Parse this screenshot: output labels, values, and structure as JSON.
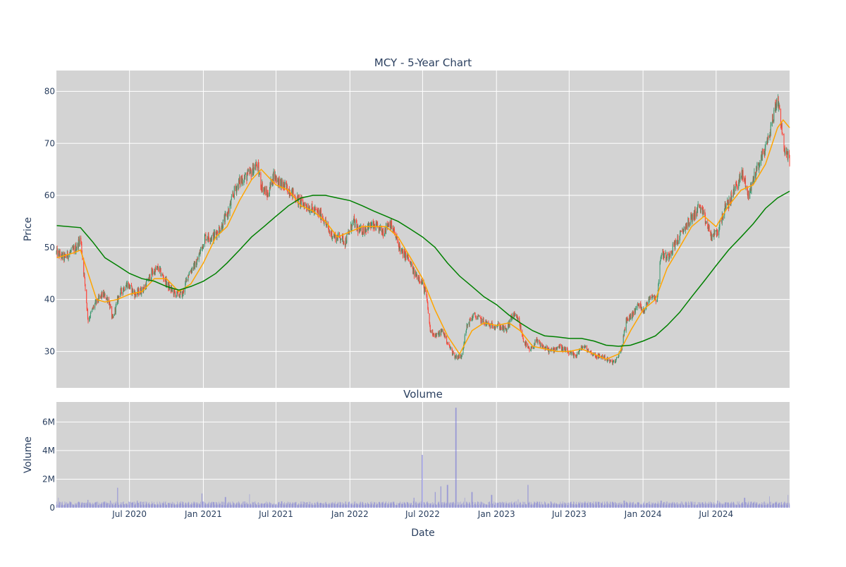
{
  "chart_data": [
    {
      "type": "candlestick",
      "title": "MCY - 5-Year Chart",
      "xlabel": "",
      "ylabel": "Price",
      "ylim": [
        23,
        84
      ],
      "xlim": [
        "2020-01-01",
        "2024-12-31"
      ],
      "yticks": [
        30,
        40,
        50,
        60,
        70,
        80
      ],
      "grid": true,
      "colors": {
        "background": "#d3d3d3",
        "grid": "#ffffff",
        "up": "#3d9970",
        "down": "#ff4136",
        "ma_short": "#ffa500",
        "ma_long": "#008000"
      },
      "price_anchors": [
        [
          "2020-01-02",
          49
        ],
        [
          "2020-01-20",
          48
        ],
        [
          "2020-02-20",
          50
        ],
        [
          "2020-03-01",
          52
        ],
        [
          "2020-03-12",
          43
        ],
        [
          "2020-03-20",
          36
        ],
        [
          "2020-04-05",
          39
        ],
        [
          "2020-04-25",
          41
        ],
        [
          "2020-05-10",
          40
        ],
        [
          "2020-05-20",
          36
        ],
        [
          "2020-06-05",
          41
        ],
        [
          "2020-06-25",
          43
        ],
        [
          "2020-07-15",
          41
        ],
        [
          "2020-08-05",
          42
        ],
        [
          "2020-08-25",
          45
        ],
        [
          "2020-09-10",
          46
        ],
        [
          "2020-09-25",
          44
        ],
        [
          "2020-10-10",
          42
        ],
        [
          "2020-10-25",
          41
        ],
        [
          "2020-11-10",
          41
        ],
        [
          "2020-11-25",
          45
        ],
        [
          "2020-12-15",
          47
        ],
        [
          "2021-01-05",
          52
        ],
        [
          "2021-01-25",
          52
        ],
        [
          "2021-02-15",
          54
        ],
        [
          "2021-03-05",
          57
        ],
        [
          "2021-03-20",
          61
        ],
        [
          "2021-04-05",
          63
        ],
        [
          "2021-04-25",
          64
        ],
        [
          "2021-05-15",
          66
        ],
        [
          "2021-05-25",
          62
        ],
        [
          "2021-06-10",
          60
        ],
        [
          "2021-06-25",
          64
        ],
        [
          "2021-07-15",
          62
        ],
        [
          "2021-08-05",
          61
        ],
        [
          "2021-08-25",
          59
        ],
        [
          "2021-09-15",
          58
        ],
        [
          "2021-10-05",
          57
        ],
        [
          "2021-10-25",
          56
        ],
        [
          "2021-11-10",
          53
        ],
        [
          "2021-11-25",
          52
        ],
        [
          "2021-12-10",
          52
        ],
        [
          "2021-12-20",
          51
        ],
        [
          "2022-01-10",
          55
        ],
        [
          "2022-01-25",
          53
        ],
        [
          "2022-02-15",
          54
        ],
        [
          "2022-03-05",
          54
        ],
        [
          "2022-03-25",
          53
        ],
        [
          "2022-04-10",
          55
        ],
        [
          "2022-04-25",
          52
        ],
        [
          "2022-05-10",
          49
        ],
        [
          "2022-05-25",
          48
        ],
        [
          "2022-06-10",
          45
        ],
        [
          "2022-06-25",
          44
        ],
        [
          "2022-07-10",
          41
        ],
        [
          "2022-07-20",
          34
        ],
        [
          "2022-08-05",
          33
        ],
        [
          "2022-08-20",
          34
        ],
        [
          "2022-09-05",
          31
        ],
        [
          "2022-09-20",
          29
        ],
        [
          "2022-10-05",
          29
        ],
        [
          "2022-10-20",
          35
        ],
        [
          "2022-11-05",
          37
        ],
        [
          "2022-11-25",
          36
        ],
        [
          "2022-12-15",
          35
        ],
        [
          "2023-01-05",
          35
        ],
        [
          "2023-01-25",
          34
        ],
        [
          "2023-02-10",
          37
        ],
        [
          "2023-02-25",
          36
        ],
        [
          "2023-03-10",
          32
        ],
        [
          "2023-03-25",
          30
        ],
        [
          "2023-04-10",
          32
        ],
        [
          "2023-04-25",
          31
        ],
        [
          "2023-05-15",
          30
        ],
        [
          "2023-06-05",
          31
        ],
        [
          "2023-06-25",
          30
        ],
        [
          "2023-07-15",
          29
        ],
        [
          "2023-08-05",
          31
        ],
        [
          "2023-08-20",
          30
        ],
        [
          "2023-09-10",
          29
        ],
        [
          "2023-09-25",
          29
        ],
        [
          "2023-10-10",
          28
        ],
        [
          "2023-10-25",
          28
        ],
        [
          "2023-11-10",
          31
        ],
        [
          "2023-11-20",
          36
        ],
        [
          "2023-12-05",
          37
        ],
        [
          "2023-12-20",
          39
        ],
        [
          "2024-01-05",
          38
        ],
        [
          "2024-01-20",
          41
        ],
        [
          "2024-02-05",
          40
        ],
        [
          "2024-02-15",
          49
        ],
        [
          "2024-03-01",
          48
        ],
        [
          "2024-03-15",
          50
        ],
        [
          "2024-04-01",
          52
        ],
        [
          "2024-04-15",
          54
        ],
        [
          "2024-05-05",
          56
        ],
        [
          "2024-05-20",
          58
        ],
        [
          "2024-06-05",
          55
        ],
        [
          "2024-06-20",
          52
        ],
        [
          "2024-07-05",
          53
        ],
        [
          "2024-07-20",
          57
        ],
        [
          "2024-08-05",
          59
        ],
        [
          "2024-08-20",
          62
        ],
        [
          "2024-09-05",
          64
        ],
        [
          "2024-09-20",
          60
        ],
        [
          "2024-10-05",
          64
        ],
        [
          "2024-10-20",
          67
        ],
        [
          "2024-11-05",
          70
        ],
        [
          "2024-11-20",
          75
        ],
        [
          "2024-12-01",
          79
        ],
        [
          "2024-12-10",
          74
        ],
        [
          "2024-12-20",
          68
        ],
        [
          "2024-12-31",
          67
        ]
      ],
      "series": [
        {
          "type": "line",
          "color": "#ffa500",
          "points": [
            [
              "2020-01-02",
              48
            ],
            [
              "2020-02-15",
              49
            ],
            [
              "2020-03-01",
              49.5
            ],
            [
              "2020-03-20",
              45
            ],
            [
              "2020-04-10",
              40
            ],
            [
              "2020-05-01",
              39.5
            ],
            [
              "2020-06-01",
              40
            ],
            [
              "2020-07-01",
              41
            ],
            [
              "2020-08-01",
              41.5
            ],
            [
              "2020-09-01",
              44
            ],
            [
              "2020-10-01",
              44
            ],
            [
              "2020-11-01",
              41.5
            ],
            [
              "2020-12-01",
              43
            ],
            [
              "2021-01-01",
              47
            ],
            [
              "2021-02-01",
              52
            ],
            [
              "2021-03-01",
              54
            ],
            [
              "2021-04-01",
              59
            ],
            [
              "2021-05-01",
              63
            ],
            [
              "2021-05-25",
              65
            ],
            [
              "2021-07-01",
              62
            ],
            [
              "2021-08-01",
              61
            ],
            [
              "2021-09-01",
              58
            ],
            [
              "2021-10-01",
              57
            ],
            [
              "2021-11-01",
              55
            ],
            [
              "2021-12-01",
              52
            ],
            [
              "2022-01-01",
              53
            ],
            [
              "2022-02-01",
              54
            ],
            [
              "2022-03-01",
              54
            ],
            [
              "2022-04-01",
              54
            ],
            [
              "2022-05-01",
              52
            ],
            [
              "2022-06-01",
              48
            ],
            [
              "2022-07-01",
              44
            ],
            [
              "2022-08-01",
              38
            ],
            [
              "2022-09-01",
              33
            ],
            [
              "2022-10-01",
              29.5
            ],
            [
              "2022-11-01",
              34
            ],
            [
              "2022-12-01",
              35.5
            ],
            [
              "2023-01-01",
              35
            ],
            [
              "2023-02-01",
              35.5
            ],
            [
              "2023-03-01",
              34
            ],
            [
              "2023-04-01",
              31
            ],
            [
              "2023-05-01",
              30.5
            ],
            [
              "2023-06-01",
              30
            ],
            [
              "2023-07-01",
              30
            ],
            [
              "2023-08-01",
              30.5
            ],
            [
              "2023-09-01",
              29.5
            ],
            [
              "2023-10-01",
              28.5
            ],
            [
              "2023-11-01",
              29.5
            ],
            [
              "2023-12-01",
              34
            ],
            [
              "2024-01-01",
              38
            ],
            [
              "2024-02-01",
              40
            ],
            [
              "2024-03-01",
              46
            ],
            [
              "2024-04-01",
              50
            ],
            [
              "2024-05-01",
              54
            ],
            [
              "2024-06-01",
              56
            ],
            [
              "2024-07-01",
              54
            ],
            [
              "2024-08-01",
              58
            ],
            [
              "2024-09-01",
              61
            ],
            [
              "2024-10-01",
              62
            ],
            [
              "2024-11-01",
              66
            ],
            [
              "2024-12-01",
              73
            ],
            [
              "2024-12-15",
              74.5
            ],
            [
              "2024-12-31",
              73
            ]
          ]
        },
        {
          "type": "line",
          "color": "#008000",
          "points": [
            [
              "2020-01-02",
              54.2
            ],
            [
              "2020-03-01",
              53.8
            ],
            [
              "2020-04-01",
              51
            ],
            [
              "2020-05-01",
              48
            ],
            [
              "2020-06-01",
              46.5
            ],
            [
              "2020-07-01",
              45
            ],
            [
              "2020-08-01",
              44
            ],
            [
              "2020-09-01",
              43.5
            ],
            [
              "2020-10-01",
              42.5
            ],
            [
              "2020-11-01",
              41.8
            ],
            [
              "2020-12-01",
              42.5
            ],
            [
              "2021-01-01",
              43.5
            ],
            [
              "2021-02-01",
              45
            ],
            [
              "2021-03-01",
              47
            ],
            [
              "2021-04-01",
              49.5
            ],
            [
              "2021-05-01",
              52
            ],
            [
              "2021-06-01",
              54
            ],
            [
              "2021-07-01",
              56
            ],
            [
              "2021-08-01",
              58
            ],
            [
              "2021-09-01",
              59.5
            ],
            [
              "2021-10-01",
              60
            ],
            [
              "2021-11-01",
              60
            ],
            [
              "2021-12-01",
              59.5
            ],
            [
              "2022-01-01",
              59
            ],
            [
              "2022-02-01",
              58
            ],
            [
              "2022-03-01",
              57
            ],
            [
              "2022-04-01",
              56
            ],
            [
              "2022-05-01",
              55
            ],
            [
              "2022-06-01",
              53.5
            ],
            [
              "2022-07-01",
              52
            ],
            [
              "2022-08-01",
              50
            ],
            [
              "2022-09-01",
              47
            ],
            [
              "2022-10-01",
              44.5
            ],
            [
              "2022-11-01",
              42.5
            ],
            [
              "2022-12-01",
              40.5
            ],
            [
              "2023-01-01",
              39
            ],
            [
              "2023-02-01",
              37
            ],
            [
              "2023-03-01",
              35.5
            ],
            [
              "2023-04-01",
              34
            ],
            [
              "2023-05-01",
              33
            ],
            [
              "2023-06-01",
              32.8
            ],
            [
              "2023-07-01",
              32.5
            ],
            [
              "2023-08-01",
              32.5
            ],
            [
              "2023-09-01",
              32
            ],
            [
              "2023-10-01",
              31.2
            ],
            [
              "2023-11-01",
              31
            ],
            [
              "2023-12-01",
              31.2
            ],
            [
              "2024-01-01",
              32
            ],
            [
              "2024-02-01",
              33
            ],
            [
              "2024-03-01",
              35
            ],
            [
              "2024-04-01",
              37.5
            ],
            [
              "2024-05-01",
              40.5
            ],
            [
              "2024-06-01",
              43.5
            ],
            [
              "2024-07-01",
              46.5
            ],
            [
              "2024-08-01",
              49.5
            ],
            [
              "2024-09-01",
              52
            ],
            [
              "2024-10-01",
              54.5
            ],
            [
              "2024-11-01",
              57.5
            ],
            [
              "2024-12-01",
              59.5
            ],
            [
              "2024-12-31",
              60.8
            ]
          ]
        }
      ]
    },
    {
      "type": "bar",
      "title": "Volume",
      "xlabel": "Date",
      "ylabel": "Volume",
      "ylim": [
        0,
        7400000
      ],
      "yticks": [
        0,
        2000000,
        4000000,
        6000000
      ],
      "ytick_labels": [
        "0",
        "2M",
        "4M",
        "6M"
      ],
      "xticks": [
        "2020-07-01",
        "2021-01-01",
        "2021-07-01",
        "2022-01-01",
        "2022-07-01",
        "2023-01-01",
        "2023-07-01",
        "2024-01-01",
        "2024-07-01"
      ],
      "xtick_labels": [
        "Jul 2020",
        "Jan 2021",
        "Jul 2021",
        "Jan 2022",
        "Jul 2022",
        "Jan 2023",
        "Jul 2023",
        "Jan 2024",
        "Jul 2024"
      ],
      "color": "#6b6bd6",
      "baseline_volume": 300000,
      "spikes": [
        [
          "2020-01-05",
          700000
        ],
        [
          "2020-03-20",
          550000
        ],
        [
          "2020-05-15",
          500000
        ],
        [
          "2020-06-01",
          1400000
        ],
        [
          "2020-07-20",
          500000
        ],
        [
          "2020-10-05",
          350000
        ],
        [
          "2020-12-28",
          1000000
        ],
        [
          "2021-02-25",
          750000
        ],
        [
          "2021-04-25",
          950000
        ],
        [
          "2021-07-15",
          450000
        ],
        [
          "2021-10-20",
          350000
        ],
        [
          "2022-03-15",
          400000
        ],
        [
          "2022-06-10",
          700000
        ],
        [
          "2022-06-30",
          3700000
        ],
        [
          "2022-08-01",
          1100000
        ],
        [
          "2022-08-15",
          1500000
        ],
        [
          "2022-09-01",
          1600000
        ],
        [
          "2022-09-22",
          7000000
        ],
        [
          "2022-10-15",
          700000
        ],
        [
          "2022-11-01",
          1100000
        ],
        [
          "2022-12-20",
          900000
        ],
        [
          "2023-02-25",
          600000
        ],
        [
          "2023-03-20",
          1600000
        ],
        [
          "2023-07-05",
          400000
        ],
        [
          "2023-11-15",
          500000
        ],
        [
          "2024-02-15",
          500000
        ],
        [
          "2024-07-05",
          500000
        ],
        [
          "2024-09-10",
          700000
        ],
        [
          "2024-11-10",
          800000
        ],
        [
          "2024-12-28",
          900000
        ]
      ]
    }
  ]
}
